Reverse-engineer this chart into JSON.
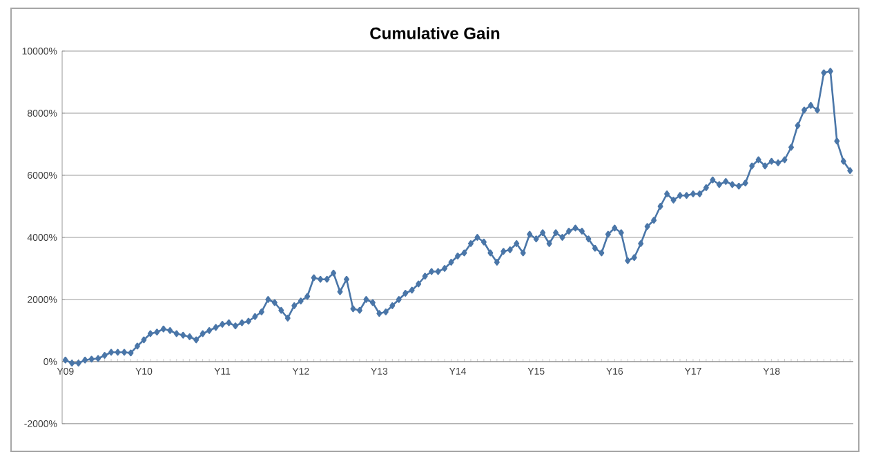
{
  "chart_data": {
    "type": "line",
    "title": "Cumulative Gain",
    "categories": [
      "Y09",
      null,
      null,
      null,
      null,
      null,
      null,
      null,
      null,
      null,
      null,
      null,
      "Y10",
      null,
      null,
      null,
      null,
      null,
      null,
      null,
      null,
      null,
      null,
      null,
      "Y11",
      null,
      null,
      null,
      null,
      null,
      null,
      null,
      null,
      null,
      null,
      null,
      "Y12",
      null,
      null,
      null,
      null,
      null,
      null,
      null,
      null,
      null,
      null,
      null,
      "Y13",
      null,
      null,
      null,
      null,
      null,
      null,
      null,
      null,
      null,
      null,
      null,
      "Y14",
      null,
      null,
      null,
      null,
      null,
      null,
      null,
      null,
      null,
      null,
      null,
      "Y15",
      null,
      null,
      null,
      null,
      null,
      null,
      null,
      null,
      null,
      null,
      null,
      "Y16",
      null,
      null,
      null,
      null,
      null,
      null,
      null,
      null,
      null,
      null,
      null,
      "Y17",
      null,
      null,
      null,
      null,
      null,
      null,
      null,
      null,
      null,
      null,
      null,
      "Y18",
      null,
      null,
      null,
      null,
      null,
      null,
      null,
      null,
      null,
      null,
      null,
      null
    ],
    "values": [
      50,
      -50,
      -50,
      50,
      80,
      100,
      200,
      300,
      300,
      300,
      280,
      500,
      700,
      900,
      950,
      1050,
      1000,
      900,
      850,
      800,
      700,
      900,
      1000,
      1100,
      1200,
      1250,
      1150,
      1250,
      1300,
      1450,
      1600,
      2000,
      1900,
      1650,
      1400,
      1800,
      1950,
      2100,
      2700,
      2650,
      2650,
      2850,
      2250,
      2650,
      1700,
      1650,
      2000,
      1900,
      1550,
      1600,
      1800,
      2000,
      2200,
      2300,
      2500,
      2750,
      2900,
      2900,
      3000,
      3200,
      3400,
      3500,
      3800,
      4000,
      3850,
      3500,
      3200,
      3550,
      3600,
      3800,
      3500,
      4100,
      3950,
      4150,
      3800,
      4150,
      4000,
      4200,
      4300,
      4200,
      3950,
      3650,
      3500,
      4100,
      4300,
      4150,
      3250,
      3350,
      3800,
      4350,
      4550,
      5000,
      5400,
      5200,
      5350,
      5350,
      5400,
      5400,
      5600,
      5850,
      5700,
      5800,
      5700,
      5650,
      5750,
      6300,
      6500,
      6300,
      6450,
      6400,
      6500,
      6900,
      7600,
      8100,
      8250,
      8100,
      9300,
      9350,
      7100,
      6450,
      6150
    ],
    "color": "#4a76a8",
    "ylim": [
      -2000,
      10000
    ],
    "yticks": [
      {
        "value": -2000,
        "label": "-2000%"
      },
      {
        "value": 0,
        "label": "0%"
      },
      {
        "value": 2000,
        "label": "2000%"
      },
      {
        "value": 4000,
        "label": "4000%"
      },
      {
        "value": 6000,
        "label": "6000%"
      },
      {
        "value": 8000,
        "label": "8000%"
      },
      {
        "value": 10000,
        "label": "10000%"
      }
    ],
    "grid": "y",
    "marker": "diamond",
    "line_style": "solid"
  }
}
